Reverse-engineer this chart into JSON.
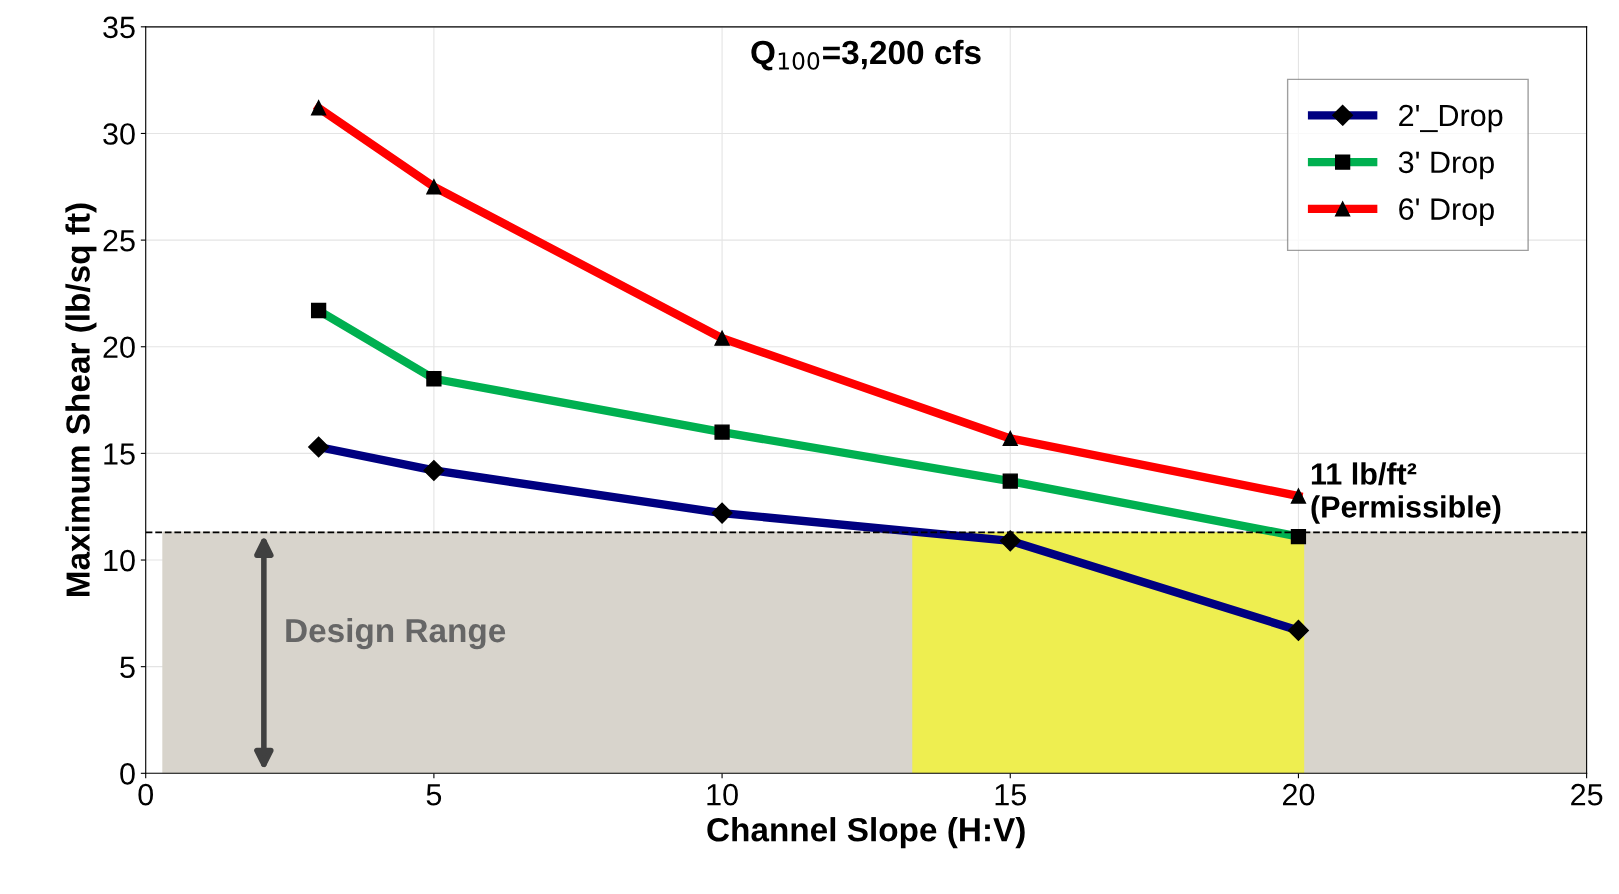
{
  "chart_data": {
    "type": "line",
    "title": "Q$_{100}$=3,200 cfs",
    "xlabel": "Channel Slope (H:V)",
    "ylabel": "Maximum Shear (lb/sq ft)",
    "x": [
      3,
      5,
      10,
      15,
      20
    ],
    "series": [
      {
        "name": "2'_Drop",
        "color": "#000080",
        "marker": "diamond",
        "values": [
          15.3,
          14.2,
          12.2,
          10.9,
          6.7
        ]
      },
      {
        "name": "3' Drop",
        "color": "#00b050",
        "marker": "square",
        "values": [
          21.7,
          18.5,
          16.0,
          13.7,
          11.1
        ]
      },
      {
        "name": "6' Drop",
        "color": "#ff0000",
        "marker": "triangle",
        "values": [
          31.2,
          27.5,
          20.4,
          15.7,
          13.0
        ]
      }
    ],
    "xlim": [
      0,
      25
    ],
    "xticks": [
      0,
      5,
      10,
      15,
      20,
      25
    ],
    "ylim": [
      0,
      35
    ],
    "yticks": [
      0,
      5,
      10,
      15,
      20,
      25,
      30,
      35
    ],
    "grid": true,
    "legend": "top right",
    "line_style": "solid",
    "ref_lines": [
      {
        "axis": "y",
        "value": 11.3,
        "label": "11 lb/ft²\n(Permissible)",
        "color": "#000000",
        "line_style": "dashed"
      }
    ],
    "bands": [
      {
        "axis": "y",
        "from": 0,
        "to": 11.3,
        "label": "Design Range",
        "color": "#d8d4cc"
      },
      {
        "axis": "x",
        "from": 13.3,
        "to": 20.1,
        "color": "#eeee50"
      }
    ]
  }
}
